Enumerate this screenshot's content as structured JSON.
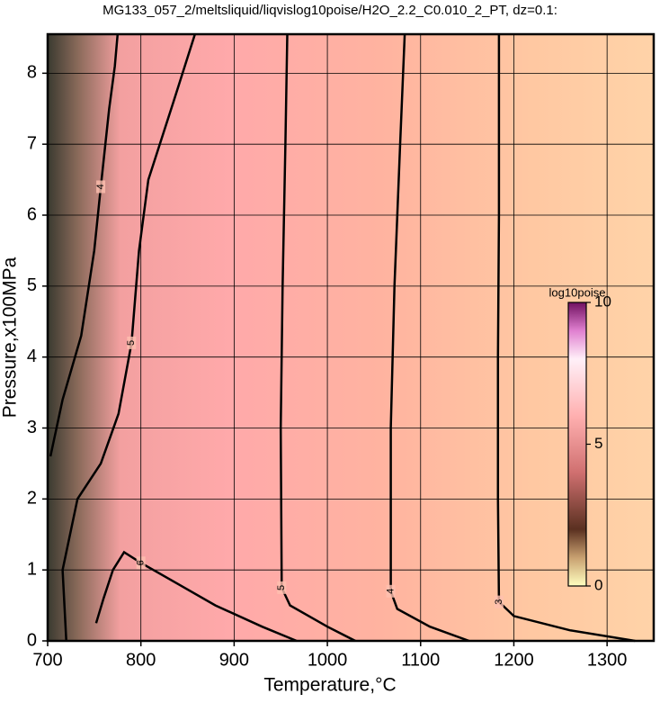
{
  "chart_data": {
    "type": "contour",
    "title": "MG133_057_2/meltsliquid/liqvislog10poise/H2O_2.2_C0.010_2_PT, dz=0.1:",
    "x_label": "Temperature,°C",
    "y_label": "Pressure,x100MPa",
    "xlim": [
      700,
      1350
    ],
    "xticks": [
      700,
      800,
      900,
      1000,
      1100,
      1200,
      1300
    ],
    "ylim": [
      0,
      8.55
    ],
    "yticks": [
      0,
      1,
      2,
      3,
      4,
      5,
      6,
      7,
      8
    ],
    "grid": true,
    "contours": [
      {
        "level": 3,
        "x": [
          1184,
          1184,
          1183,
          1183,
          1184,
          1200,
          1260,
          1330
        ],
        "y": [
          8.55,
          6,
          4,
          2,
          0.55,
          0.35,
          0.15,
          0
        ]
      },
      {
        "level": 4,
        "x": [
          1083,
          1078,
          1072,
          1068,
          1068,
          1075,
          1110,
          1152
        ],
        "y": [
          8.55,
          7,
          5,
          3,
          0.7,
          0.45,
          0.2,
          0
        ]
      },
      {
        "level": 5,
        "x": [
          957,
          955,
          952,
          950,
          951,
          960,
          1000,
          1030
        ],
        "y": [
          8.55,
          7,
          5,
          3,
          0.75,
          0.5,
          0.2,
          0
        ]
      },
      {
        "level": 5,
        "x": [
          720,
          716,
          732,
          757,
          776,
          790,
          798,
          808,
          835,
          858
        ],
        "y": [
          0,
          1,
          2,
          2.5,
          3.2,
          4.2,
          5.5,
          6.5,
          7.6,
          8.55
        ]
      },
      {
        "level": 4,
        "x": [
          703,
          716,
          736,
          750,
          757,
          766,
          772,
          775
        ],
        "y": [
          2.6,
          3.4,
          4.3,
          5.5,
          6.4,
          7.5,
          8.1,
          8.55
        ]
      },
      {
        "level": 6,
        "x": [
          752,
          760,
          770,
          782,
          800,
          840,
          880,
          930,
          967
        ],
        "y": [
          0.25,
          0.6,
          1.0,
          1.25,
          1.1,
          0.8,
          0.5,
          0.2,
          0
        ]
      }
    ],
    "colorbar": {
      "label": "log10poise",
      "lim": [
        0,
        10
      ],
      "ticks": [
        0,
        5,
        10
      ]
    }
  }
}
